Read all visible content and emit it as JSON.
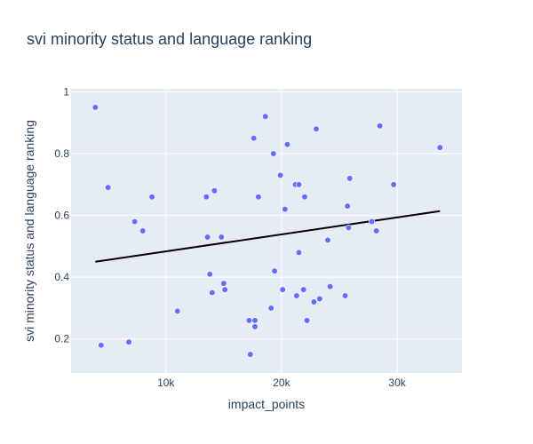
{
  "chart_data": {
    "type": "scatter",
    "title": "svi minority status and language ranking",
    "xlabel": "impact_points",
    "ylabel": "svi minority status and language ranking",
    "xlim": [
      1800,
      35600
    ],
    "ylim": [
      0.09,
      1.01
    ],
    "x_ticks": [
      10000,
      20000,
      30000
    ],
    "x_tick_labels": [
      "10k",
      "20k",
      "30k"
    ],
    "y_ticks": [
      0.2,
      0.4,
      0.6,
      0.8,
      1
    ],
    "y_tick_labels": [
      "0.2",
      "0.4",
      "0.6",
      "0.8",
      "1"
    ],
    "grid": true,
    "marker_color": "#636efa",
    "trend_color": "#000000",
    "plot_bg": "#e5ecf6",
    "series": [
      {
        "points": [
          [
            3900,
            0.95
          ],
          [
            4400,
            0.18
          ],
          [
            5000,
            0.69
          ],
          [
            6800,
            0.19
          ],
          [
            7300,
            0.58
          ],
          [
            8000,
            0.55
          ],
          [
            8800,
            0.66
          ],
          [
            11000,
            0.29
          ],
          [
            13500,
            0.66
          ],
          [
            13600,
            0.53
          ],
          [
            13800,
            0.41
          ],
          [
            14000,
            0.35
          ],
          [
            14200,
            0.68
          ],
          [
            14800,
            0.53
          ],
          [
            15000,
            0.38
          ],
          [
            15100,
            0.36
          ],
          [
            17200,
            0.26
          ],
          [
            17300,
            0.15
          ],
          [
            17600,
            0.85
          ],
          [
            17700,
            0.26
          ],
          [
            17700,
            0.24
          ],
          [
            18000,
            0.66
          ],
          [
            18600,
            0.92
          ],
          [
            19100,
            0.3
          ],
          [
            19300,
            0.8
          ],
          [
            19400,
            0.42
          ],
          [
            19900,
            0.73
          ],
          [
            20100,
            0.36
          ],
          [
            20300,
            0.62
          ],
          [
            20500,
            0.83
          ],
          [
            21200,
            0.7
          ],
          [
            21300,
            0.34
          ],
          [
            21500,
            0.7
          ],
          [
            21500,
            0.48
          ],
          [
            21900,
            0.36
          ],
          [
            22000,
            0.66
          ],
          [
            22200,
            0.26
          ],
          [
            22800,
            0.32
          ],
          [
            23000,
            0.88
          ],
          [
            23300,
            0.33
          ],
          [
            24000,
            0.52
          ],
          [
            24200,
            0.37
          ],
          [
            25500,
            0.34
          ],
          [
            25700,
            0.63
          ],
          [
            25800,
            0.56
          ],
          [
            25900,
            0.72
          ],
          [
            27800,
            0.58
          ],
          [
            28200,
            0.55
          ],
          [
            28500,
            0.89
          ],
          [
            29700,
            0.7
          ],
          [
            33700,
            0.82
          ]
        ]
      }
    ],
    "trendline": [
      [
        3900,
        0.45
      ],
      [
        33700,
        0.614
      ]
    ]
  }
}
